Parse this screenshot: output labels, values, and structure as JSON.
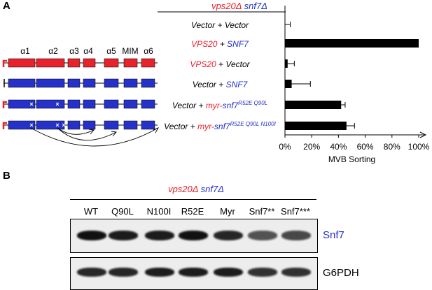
{
  "panel_a": {
    "label": "A",
    "header": {
      "part1": "vps20Δ",
      "part2": "snf7Δ"
    },
    "helix_labels": [
      "α1",
      "α2",
      "α3",
      "α4",
      "α5",
      "MIM",
      "α6"
    ],
    "colors": {
      "vps20": "#e8212b",
      "snf7": "#2531c8",
      "bar": "#000000"
    }
  },
  "chart_data": {
    "type": "bar",
    "orientation": "horizontal",
    "categories": [
      "Vector + Vector",
      "VPS20 + SNF7",
      "VPS20 + Vector",
      "Vector + SNF7",
      "Vector + myr-snf7 R52E Q90L",
      "Vector + myr-snf7 R52E Q90L N100I"
    ],
    "values": [
      0,
      100,
      2,
      5,
      42,
      46
    ],
    "errors": [
      4,
      0,
      5,
      14,
      3,
      6
    ],
    "xlabel": "MVB Sorting",
    "xlim": [
      0,
      100
    ],
    "ticks": [
      "0%",
      "20%",
      "40%",
      "60%",
      "80%",
      "100%"
    ]
  },
  "row_labels": [
    {
      "a": "Vector",
      "b": " + ",
      "c": "Vector",
      "sup": ""
    },
    {
      "a": "VPS20",
      "b": " + ",
      "c": "SNF7",
      "sup": ""
    },
    {
      "a": "VPS20",
      "b": " + ",
      "c": "Vector",
      "sup": ""
    },
    {
      "a": "Vector",
      "b": " + ",
      "c": "SNF7",
      "sup": ""
    },
    {
      "a": "Vector",
      "b": " + ",
      "c1": "myr-",
      "c2": "snf7",
      "sup": "R52E Q90L"
    },
    {
      "a": "Vector",
      "b": " + ",
      "c1": "myr-",
      "c2": "snf7",
      "sup": "R52E Q90L N100I"
    }
  ],
  "panel_b": {
    "label": "B",
    "header": {
      "part1": "vps20Δ",
      "part2": "snf7Δ"
    },
    "lanes": [
      "WT",
      "Q90L",
      "N100I",
      "R52E",
      "Myr",
      "Snf7**",
      "Snf7***"
    ],
    "blots": [
      "Snf7",
      "G6PDH"
    ],
    "snf7_intensity": [
      1.0,
      0.95,
      0.95,
      1.0,
      0.9,
      0.7,
      0.75
    ],
    "g6pdh_intensity": [
      0.9,
      0.9,
      0.95,
      0.95,
      0.95,
      0.85,
      0.85
    ]
  }
}
